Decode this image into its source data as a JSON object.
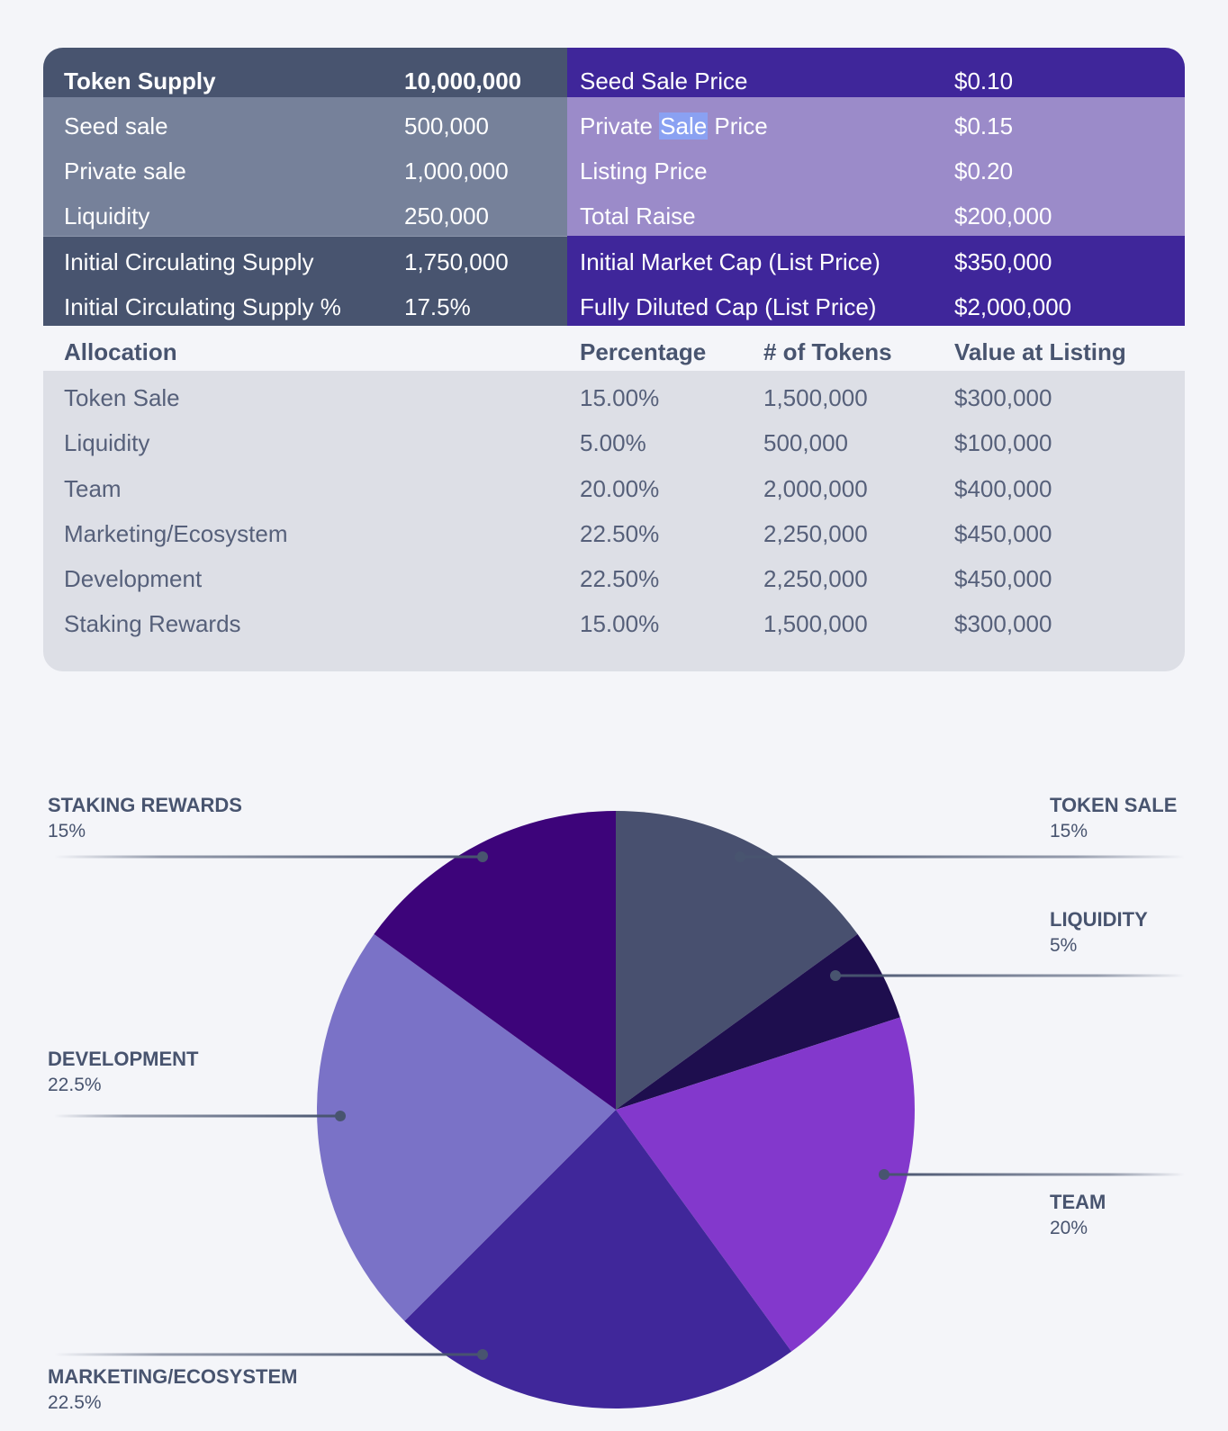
{
  "summary": {
    "supply": [
      {
        "label": "Token Supply",
        "value": "10,000,000"
      },
      {
        "label": "Seed sale",
        "value": "500,000"
      },
      {
        "label": "Private sale",
        "value": "1,000,000"
      },
      {
        "label": "Liquidity",
        "value": "250,000"
      },
      {
        "label": "Initial Circulating Supply",
        "value": "1,750,000"
      },
      {
        "label": "Initial Circulating Supply %",
        "value": "17.5%"
      }
    ],
    "pricing": [
      {
        "label": "Seed Sale Price",
        "value": "$0.10"
      },
      {
        "label_parts": [
          "Private ",
          "Sale",
          " Price"
        ],
        "value": "$0.15"
      },
      {
        "label": "Listing Price",
        "value": "$0.20"
      },
      {
        "label": "Total Raise",
        "value": "$200,000"
      },
      {
        "label": "Initial Market Cap (List Price)",
        "value": "$350,000"
      },
      {
        "label": "Fully Diluted Cap (List Price)",
        "value": "$2,000,000"
      }
    ]
  },
  "allocation_table": {
    "headers": [
      "Allocation",
      "Percentage",
      "# of Tokens",
      "Value at Listing"
    ],
    "rows": [
      [
        "Token Sale",
        "15.00%",
        "1,500,000",
        "$300,000"
      ],
      [
        "Liquidity",
        "5.00%",
        "500,000",
        "$100,000"
      ],
      [
        "Team",
        "20.00%",
        "2,000,000",
        "$400,000"
      ],
      [
        "Marketing/Ecosystem",
        "22.50%",
        "2,250,000",
        "$450,000"
      ],
      [
        "Development",
        "22.50%",
        "2,250,000",
        "$450,000"
      ],
      [
        "Staking Rewards",
        "15.00%",
        "1,500,000",
        "$300,000"
      ]
    ]
  },
  "colors": {
    "slate": "#48546f",
    "indigo": "#3f269a",
    "slate_light": "#76819a",
    "lavender": "#9b8bc9"
  },
  "chart_data": {
    "type": "pie",
    "title": "",
    "start": "top, clockwise",
    "slices": [
      {
        "name": "TOKEN SALE",
        "value": 15,
        "label": "15%",
        "color": "#48506f"
      },
      {
        "name": "LIQUIDITY",
        "value": 5,
        "label": "5%",
        "color": "#1e0e4e"
      },
      {
        "name": "TEAM",
        "value": 20,
        "label": "20%",
        "color": "#8338cc"
      },
      {
        "name": "MARKETING/ECOSYSTEM",
        "value": 22.5,
        "label": "22.5%",
        "color": "#40279a"
      },
      {
        "name": "DEVELOPMENT",
        "value": 22.5,
        "label": "22.5%",
        "color": "#7a72c7"
      },
      {
        "name": "STAKING REWARDS",
        "value": 15,
        "label": "15%",
        "color": "#3d047a"
      }
    ]
  }
}
